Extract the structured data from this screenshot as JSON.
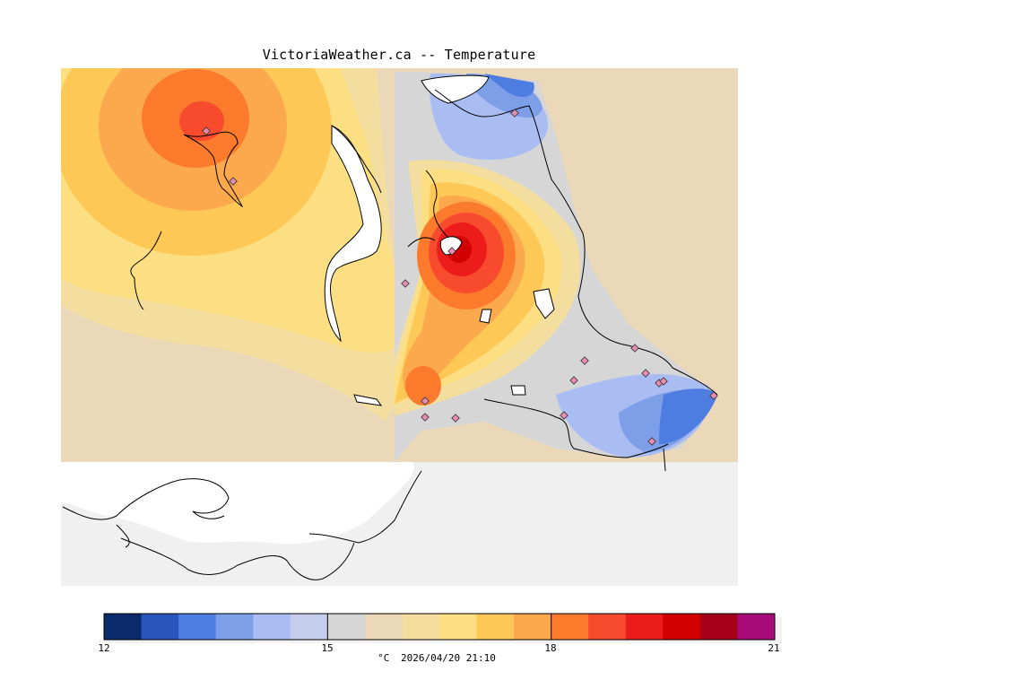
{
  "title": "VictoriaWeather.ca -- Temperature",
  "legend": {
    "unit": "°C",
    "timestamp": "2026/04/20 21:10",
    "min": 12,
    "max": 21,
    "ticks": [
      "12",
      "15",
      "18",
      "21"
    ],
    "colors": [
      "#0b2a6b",
      "#2a55bd",
      "#4d7de0",
      "#7d9fe8",
      "#aabdf2",
      "#c4cdeb",
      "#d6d6d6",
      "#ead8b8",
      "#f3dea0",
      "#fddf83",
      "#fdc855",
      "#fca84d",
      "#fb7a2c",
      "#f84b2e",
      "#ec1c1c",
      "#d20000",
      "#a50019",
      "#a80a78"
    ]
  },
  "map": {
    "land_color": "#f0f0f0",
    "stations": 17
  }
}
